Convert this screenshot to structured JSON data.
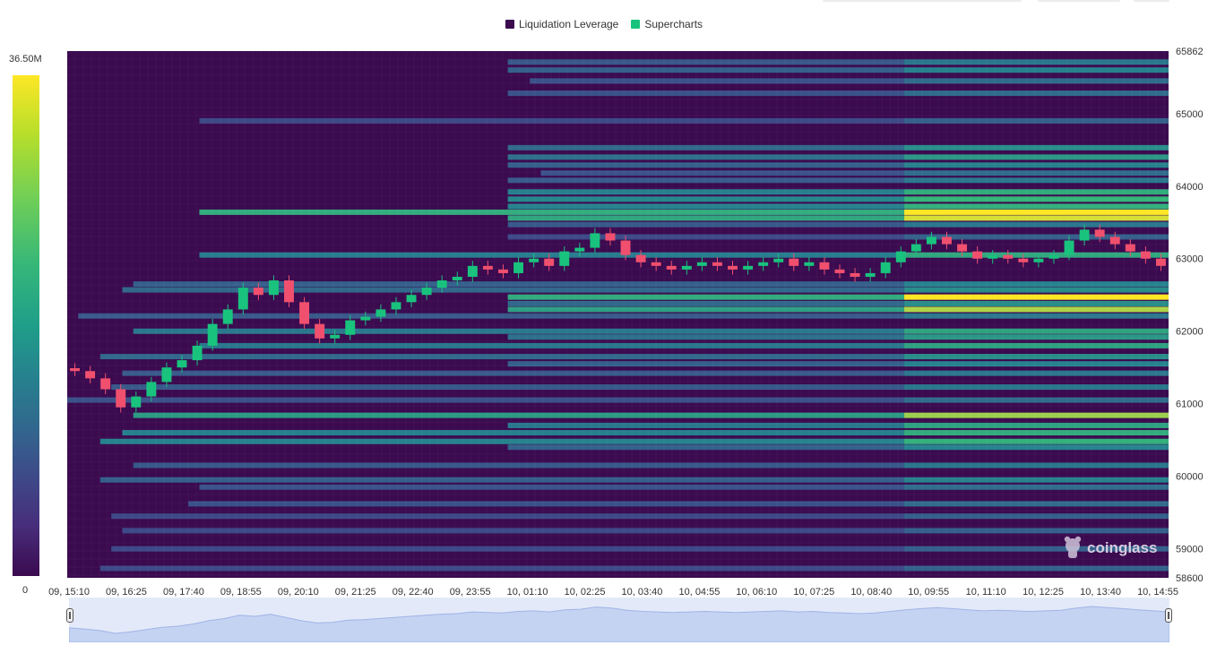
{
  "legend": {
    "items": [
      {
        "label": "Liquidation Leverage",
        "color": "#3b0a4f"
      },
      {
        "label": "Supercharts",
        "color": "#19c37d"
      }
    ]
  },
  "colorbar": {
    "max_label": "36.50M",
    "min_label": "0"
  },
  "watermark": {
    "text": "coinglass",
    "icon": "bear-logo-icon"
  },
  "chart_data": {
    "type": "heatmap",
    "title": "",
    "x_tick_labels": [
      "09, 15:10",
      "09, 16:25",
      "09, 17:40",
      "09, 18:55",
      "09, 20:10",
      "09, 21:25",
      "09, 22:40",
      "09, 23:55",
      "10, 01:10",
      "10, 02:25",
      "10, 03:40",
      "10, 04:55",
      "10, 06:10",
      "10, 07:25",
      "10, 08:40",
      "10, 09:55",
      "10, 11:10",
      "10, 12:25",
      "10, 13:40",
      "10, 14:55"
    ],
    "y_tick_labels": [
      "65862",
      "65000",
      "64000",
      "63000",
      "62000",
      "61000",
      "60000",
      "59000",
      "58600"
    ],
    "ylim": [
      58600,
      65862
    ],
    "colorscale": [
      "#3b0a4f",
      "#3e4a89",
      "#26828e",
      "#35b779",
      "#fde725"
    ],
    "value_range": [
      0,
      36500000
    ],
    "liquidation_levels": [
      {
        "price": 65710,
        "start": 0.4,
        "intensity": 0.45
      },
      {
        "price": 65600,
        "start": 0.4,
        "intensity": 0.5
      },
      {
        "price": 65450,
        "start": 0.42,
        "intensity": 0.4
      },
      {
        "price": 65280,
        "start": 0.4,
        "intensity": 0.4
      },
      {
        "price": 64900,
        "start": 0.12,
        "intensity": 0.35
      },
      {
        "price": 64530,
        "start": 0.4,
        "intensity": 0.55
      },
      {
        "price": 64400,
        "start": 0.4,
        "intensity": 0.6
      },
      {
        "price": 64290,
        "start": 0.4,
        "intensity": 0.5
      },
      {
        "price": 64180,
        "start": 0.43,
        "intensity": 0.4
      },
      {
        "price": 64080,
        "start": 0.4,
        "intensity": 0.45
      },
      {
        "price": 63920,
        "start": 0.4,
        "intensity": 0.7
      },
      {
        "price": 63820,
        "start": 0.4,
        "intensity": 0.75
      },
      {
        "price": 63720,
        "start": 0.4,
        "intensity": 0.72
      },
      {
        "price": 63640,
        "start": 0.12,
        "intensity": 1.0
      },
      {
        "price": 63560,
        "start": 0.4,
        "intensity": 0.95
      },
      {
        "price": 63470,
        "start": 0.4,
        "intensity": 0.45
      },
      {
        "price": 63300,
        "start": 0.4,
        "intensity": 0.35
      },
      {
        "price": 63050,
        "start": 0.12,
        "intensity": 0.68
      },
      {
        "price": 62650,
        "start": 0.06,
        "intensity": 0.5
      },
      {
        "price": 62570,
        "start": 0.05,
        "intensity": 0.55
      },
      {
        "price": 62470,
        "start": 0.4,
        "intensity": 1.0
      },
      {
        "price": 62380,
        "start": 0.4,
        "intensity": 0.55
      },
      {
        "price": 62300,
        "start": 0.4,
        "intensity": 0.9
      },
      {
        "price": 62210,
        "start": 0.01,
        "intensity": 0.45
      },
      {
        "price": 62000,
        "start": 0.06,
        "intensity": 0.65
      },
      {
        "price": 61920,
        "start": 0.4,
        "intensity": 0.6
      },
      {
        "price": 61800,
        "start": 0.12,
        "intensity": 0.65
      },
      {
        "price": 61650,
        "start": 0.03,
        "intensity": 0.55
      },
      {
        "price": 61550,
        "start": 0.4,
        "intensity": 0.5
      },
      {
        "price": 61420,
        "start": 0.05,
        "intensity": 0.45
      },
      {
        "price": 61230,
        "start": 0.04,
        "intensity": 0.45
      },
      {
        "price": 61050,
        "start": 0.0,
        "intensity": 0.4
      },
      {
        "price": 60840,
        "start": 0.06,
        "intensity": 0.88
      },
      {
        "price": 60700,
        "start": 0.4,
        "intensity": 0.65
      },
      {
        "price": 60600,
        "start": 0.05,
        "intensity": 0.7
      },
      {
        "price": 60480,
        "start": 0.03,
        "intensity": 0.72
      },
      {
        "price": 60400,
        "start": 0.4,
        "intensity": 0.5
      },
      {
        "price": 60150,
        "start": 0.06,
        "intensity": 0.45
      },
      {
        "price": 59950,
        "start": 0.03,
        "intensity": 0.5
      },
      {
        "price": 59850,
        "start": 0.12,
        "intensity": 0.4
      },
      {
        "price": 59620,
        "start": 0.11,
        "intensity": 0.4
      },
      {
        "price": 59450,
        "start": 0.04,
        "intensity": 0.35
      },
      {
        "price": 59250,
        "start": 0.05,
        "intensity": 0.35
      },
      {
        "price": 59000,
        "start": 0.04,
        "intensity": 0.35
      },
      {
        "price": 58730,
        "start": 0.03,
        "intensity": 0.35
      }
    ],
    "candles_close": [
      61450,
      61350,
      61200,
      60950,
      61100,
      61300,
      61500,
      61600,
      61800,
      62100,
      62300,
      62600,
      62500,
      62700,
      62400,
      62100,
      61900,
      61950,
      62150,
      62200,
      62300,
      62400,
      62500,
      62600,
      62700,
      62750,
      62900,
      62850,
      62800,
      62950,
      63000,
      62900,
      63100,
      63150,
      63350,
      63250,
      63050,
      62950,
      62900,
      62850,
      62900,
      62950,
      62900,
      62850,
      62900,
      62950,
      63000,
      62900,
      62950,
      62850,
      62800,
      62750,
      62800,
      62950,
      63100,
      63200,
      63300,
      63200,
      63100,
      63000,
      63050,
      63000,
      62950,
      63000,
      63050,
      63250,
      63400,
      63300,
      63200,
      63100,
      63000,
      62900
    ],
    "navigator": {
      "type": "area",
      "color": "#c9d6f7"
    }
  }
}
